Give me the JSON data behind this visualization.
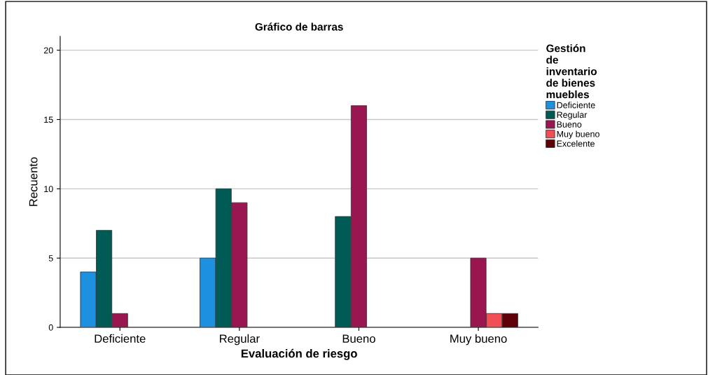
{
  "chart_data": {
    "type": "bar",
    "title": "Gráfico de barras",
    "xlabel": "Evaluación de riesgo",
    "ylabel": "Recuento",
    "legend_title": "Gestión\nde\ninventario\nde bienes\nmuebles",
    "categories": [
      "Deficiente",
      "Regular",
      "Bueno",
      "Muy bueno"
    ],
    "series": [
      {
        "name": "Deficiente",
        "color": "#1e90e0",
        "values": [
          4,
          5,
          null,
          null
        ]
      },
      {
        "name": "Regular",
        "color": "#005a55",
        "values": [
          7,
          10,
          8,
          null
        ]
      },
      {
        "name": "Bueno",
        "color": "#9a1650",
        "values": [
          1,
          9,
          16,
          5
        ]
      },
      {
        "name": "Muy bueno",
        "color": "#f24e55",
        "values": [
          null,
          null,
          null,
          1
        ]
      },
      {
        "name": "Excelente",
        "color": "#5e0006",
        "values": [
          null,
          null,
          null,
          1
        ]
      }
    ],
    "ylim": [
      0,
      21
    ],
    "yticks": [
      0,
      5,
      10,
      15,
      20
    ],
    "grid": "y",
    "legend": "right"
  }
}
